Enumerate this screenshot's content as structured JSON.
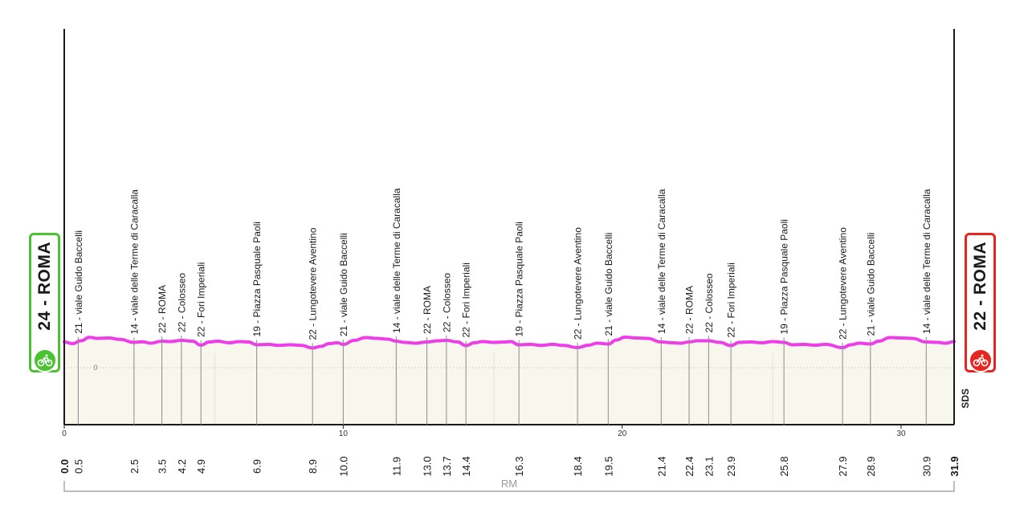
{
  "start_badge": {
    "label": "24 - ROMA",
    "color": "#4cc233",
    "icon": "bicycle-icon"
  },
  "end_badge": {
    "label": "22 - ROMA",
    "color": "#e62420",
    "icon": "bicycle-icon"
  },
  "logo_text": "SDS",
  "chart_data": {
    "type": "area",
    "xlim": [
      0,
      31.9
    ],
    "x_ticks": [
      0,
      10,
      20,
      30
    ],
    "y_ref_label": "0",
    "region_label": "RM",
    "line_color": "#ee3ee8",
    "fill_color": "#f8f7ee",
    "profile": [
      [
        0.0,
        0.72
      ],
      [
        0.3,
        0.64
      ],
      [
        0.6,
        0.78
      ],
      [
        0.9,
        0.95
      ],
      [
        1.2,
        0.9
      ],
      [
        1.6,
        0.92
      ],
      [
        2.0,
        0.85
      ],
      [
        2.5,
        0.7
      ],
      [
        2.8,
        0.73
      ],
      [
        3.1,
        0.66
      ],
      [
        3.5,
        0.76
      ],
      [
        3.8,
        0.74
      ],
      [
        4.2,
        0.8
      ],
      [
        4.6,
        0.76
      ],
      [
        4.9,
        0.56
      ],
      [
        5.2,
        0.72
      ],
      [
        5.5,
        0.76
      ],
      [
        5.9,
        0.68
      ],
      [
        6.3,
        0.74
      ],
      [
        6.6,
        0.72
      ],
      [
        6.9,
        0.58
      ],
      [
        7.3,
        0.6
      ],
      [
        7.7,
        0.55
      ],
      [
        8.1,
        0.58
      ],
      [
        8.5,
        0.55
      ],
      [
        8.9,
        0.42
      ],
      [
        9.2,
        0.5
      ],
      [
        9.5,
        0.64
      ],
      [
        9.8,
        0.68
      ],
      [
        10.0,
        0.6
      ],
      [
        10.4,
        0.8
      ],
      [
        10.8,
        0.94
      ],
      [
        11.2,
        0.9
      ],
      [
        11.6,
        0.86
      ],
      [
        11.9,
        0.76
      ],
      [
        12.2,
        0.7
      ],
      [
        12.6,
        0.66
      ],
      [
        13.0,
        0.72
      ],
      [
        13.4,
        0.78
      ],
      [
        13.7,
        0.8
      ],
      [
        14.1,
        0.72
      ],
      [
        14.4,
        0.54
      ],
      [
        14.7,
        0.68
      ],
      [
        15.0,
        0.74
      ],
      [
        15.4,
        0.7
      ],
      [
        15.8,
        0.72
      ],
      [
        16.0,
        0.74
      ],
      [
        16.3,
        0.58
      ],
      [
        16.7,
        0.6
      ],
      [
        17.1,
        0.55
      ],
      [
        17.5,
        0.6
      ],
      [
        17.9,
        0.55
      ],
      [
        18.4,
        0.44
      ],
      [
        18.8,
        0.56
      ],
      [
        19.1,
        0.66
      ],
      [
        19.5,
        0.62
      ],
      [
        19.8,
        0.82
      ],
      [
        20.1,
        0.96
      ],
      [
        20.5,
        0.92
      ],
      [
        20.9,
        0.9
      ],
      [
        21.4,
        0.72
      ],
      [
        21.8,
        0.68
      ],
      [
        22.1,
        0.66
      ],
      [
        22.4,
        0.72
      ],
      [
        22.7,
        0.78
      ],
      [
        23.1,
        0.78
      ],
      [
        23.5,
        0.7
      ],
      [
        23.9,
        0.54
      ],
      [
        24.2,
        0.7
      ],
      [
        24.6,
        0.72
      ],
      [
        25.0,
        0.68
      ],
      [
        25.4,
        0.74
      ],
      [
        25.8,
        0.7
      ],
      [
        26.1,
        0.58
      ],
      [
        26.5,
        0.6
      ],
      [
        26.9,
        0.56
      ],
      [
        27.3,
        0.6
      ],
      [
        27.9,
        0.44
      ],
      [
        28.2,
        0.58
      ],
      [
        28.5,
        0.66
      ],
      [
        28.9,
        0.62
      ],
      [
        29.2,
        0.76
      ],
      [
        29.6,
        0.94
      ],
      [
        30.0,
        0.92
      ],
      [
        30.4,
        0.9
      ],
      [
        30.9,
        0.72
      ],
      [
        31.3,
        0.7
      ],
      [
        31.6,
        0.66
      ],
      [
        31.9,
        0.74
      ]
    ],
    "waypoints": [
      {
        "km": 0.0,
        "km_label": "0.0",
        "label": ""
      },
      {
        "km": 0.5,
        "km_label": "0.5",
        "label": "21 - viale Guido Baccelli"
      },
      {
        "km": 2.5,
        "km_label": "2.5",
        "label": "14 - viale delle Terme di Caracalla"
      },
      {
        "km": 3.5,
        "km_label": "3.5",
        "label": "22 - ROMA"
      },
      {
        "km": 4.2,
        "km_label": "4.2",
        "label": "22 - Colosseo"
      },
      {
        "km": 4.9,
        "km_label": "4.9",
        "label": "22 - Fori Imperiali"
      },
      {
        "km": 6.9,
        "km_label": "6.9",
        "label": "19 - Piazza Pasquale Paoli"
      },
      {
        "km": 8.9,
        "km_label": "8.9",
        "label": "22 - Lungotevere Aventino"
      },
      {
        "km": 10.0,
        "km_label": "10.0",
        "label": "21 - viale Guido Baccelli"
      },
      {
        "km": 11.9,
        "km_label": "11.9",
        "label": "14 - viale delle Terme di Caracalla"
      },
      {
        "km": 13.0,
        "km_label": "13.0",
        "label": "22 - ROMA"
      },
      {
        "km": 13.7,
        "km_label": "13.7",
        "label": "22 - Colosseo"
      },
      {
        "km": 14.4,
        "km_label": "14.4",
        "label": "22 - Fori Imperiali"
      },
      {
        "km": 16.3,
        "km_label": "16.3",
        "label": "19 - Piazza Pasquale Paoli"
      },
      {
        "km": 18.4,
        "km_label": "18.4",
        "label": "22 - Lungotevere Aventino"
      },
      {
        "km": 19.5,
        "km_label": "19.5",
        "label": "21 - viale Guido Baccelli"
      },
      {
        "km": 21.4,
        "km_label": "21.4",
        "label": "14 - viale delle Terme di Caracalla"
      },
      {
        "km": 22.4,
        "km_label": "22.4",
        "label": "22 - ROMA"
      },
      {
        "km": 23.1,
        "km_label": "23.1",
        "label": "22 - Colosseo"
      },
      {
        "km": 23.9,
        "km_label": "23.9",
        "label": "22 - Fori Imperiali"
      },
      {
        "km": 25.8,
        "km_label": "25.8",
        "label": "19 - Piazza Pasquale Paoli"
      },
      {
        "km": 27.9,
        "km_label": "27.9",
        "label": "22 - Lungotevere Aventino"
      },
      {
        "km": 28.9,
        "km_label": "28.9",
        "label": "21 - viale Guido Baccelli"
      },
      {
        "km": 30.9,
        "km_label": "30.9",
        "label": "14 - viale delle Terme di Caracalla"
      },
      {
        "km": 31.9,
        "km_label": "31.9",
        "label": ""
      }
    ]
  }
}
